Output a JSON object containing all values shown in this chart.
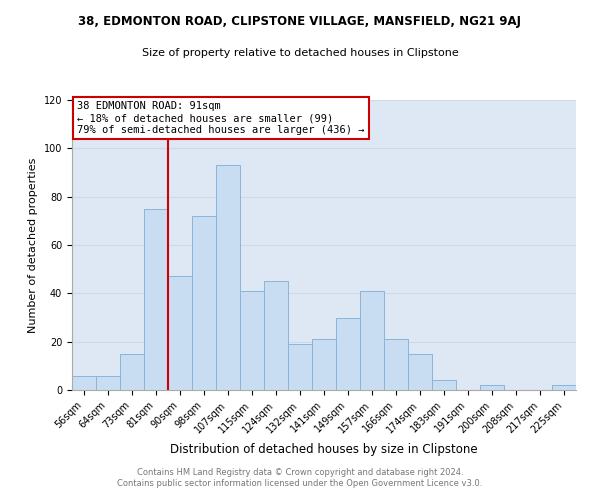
{
  "title1": "38, EDMONTON ROAD, CLIPSTONE VILLAGE, MANSFIELD, NG21 9AJ",
  "title2": "Size of property relative to detached houses in Clipstone",
  "xlabel": "Distribution of detached houses by size in Clipstone",
  "ylabel": "Number of detached properties",
  "bin_labels": [
    "56sqm",
    "64sqm",
    "73sqm",
    "81sqm",
    "90sqm",
    "98sqm",
    "107sqm",
    "115sqm",
    "124sqm",
    "132sqm",
    "141sqm",
    "149sqm",
    "157sqm",
    "166sqm",
    "174sqm",
    "183sqm",
    "191sqm",
    "200sqm",
    "208sqm",
    "217sqm",
    "225sqm"
  ],
  "bar_heights": [
    6,
    6,
    15,
    75,
    47,
    72,
    93,
    41,
    45,
    19,
    21,
    30,
    41,
    21,
    15,
    4,
    0,
    2,
    0,
    0,
    2
  ],
  "bar_color": "#c9ddf2",
  "bar_edge_color": "#89b4d9",
  "vline_x_index": 4,
  "vline_color": "#cc0000",
  "annotation_text": "38 EDMONTON ROAD: 91sqm\n← 18% of detached houses are smaller (99)\n79% of semi-detached houses are larger (436) →",
  "annotation_box_color": "#cc0000",
  "annotation_bg_color": "#ffffff",
  "ylim": [
    0,
    120
  ],
  "yticks": [
    0,
    20,
    40,
    60,
    80,
    100,
    120
  ],
  "footnote": "Contains HM Land Registry data © Crown copyright and database right 2024.\nContains public sector information licensed under the Open Government Licence v3.0.",
  "grid_color": "#ccdae8",
  "bg_color": "#dde8f4",
  "title1_fontsize": 8.5,
  "title2_fontsize": 8.0,
  "xlabel_fontsize": 8.5,
  "ylabel_fontsize": 8.0,
  "tick_fontsize": 7.0,
  "footnote_fontsize": 6.0,
  "footnote_color": "#777777"
}
